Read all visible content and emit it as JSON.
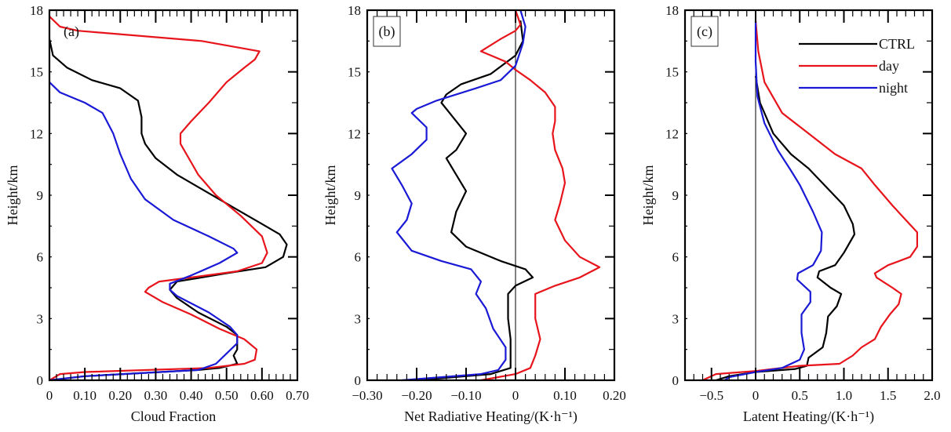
{
  "chart_data": [
    {
      "type": "line",
      "panel_label": "(a)",
      "xlabel": "Cloud Fraction",
      "ylabel": "Height/km",
      "xlim": [
        0,
        0.7
      ],
      "ylim": [
        0,
        18
      ],
      "xticks": [
        0,
        0.1,
        0.2,
        0.3,
        0.4,
        0.5,
        0.6,
        0.7
      ],
      "xtick_labels": [
        "0",
        "0.10",
        "0.20",
        "0.30",
        "0.40",
        "0.50",
        "0.60",
        "0.70"
      ],
      "yticks": [
        0,
        3,
        6,
        9,
        12,
        15,
        18
      ],
      "ytick_labels": [
        "0",
        "3",
        "6",
        "9",
        "12",
        "15",
        "18"
      ],
      "zero_line": false,
      "panel_label_boxed": false,
      "legend": false,
      "series": [
        {
          "name": "CTRL",
          "color": "#000000",
          "x": [
            0,
            0.01,
            0.05,
            0.12,
            0.2,
            0.25,
            0.26,
            0.26,
            0.27,
            0.3,
            0.36,
            0.44,
            0.53,
            0.6,
            0.65,
            0.67,
            0.66,
            0.61,
            0.5,
            0.36,
            0.34,
            0.36,
            0.42,
            0.5,
            0.53,
            0.53,
            0.52,
            0.53,
            0.48,
            0.42,
            0.1,
            0
          ],
          "y": [
            16.6,
            15.8,
            15.2,
            14.6,
            14.2,
            13.6,
            12.8,
            12.0,
            11.5,
            10.8,
            10.0,
            9.2,
            8.3,
            7.6,
            7.1,
            6.6,
            6.0,
            5.5,
            5.2,
            4.8,
            4.4,
            4.0,
            3.3,
            2.6,
            2.2,
            1.5,
            1.2,
            0.8,
            0.6,
            0.5,
            0.2,
            0
          ]
        },
        {
          "name": "day",
          "color": "#e8141b",
          "x": [
            0,
            0.03,
            0.08,
            0.43,
            0.593,
            0.58,
            0.55,
            0.5,
            0.45,
            0.4,
            0.37,
            0.37,
            0.4,
            0.42,
            0.47,
            0.54,
            0.6,
            0.615,
            0.6,
            0.53,
            0.4,
            0.31,
            0.28,
            0.27,
            0.32,
            0.4,
            0.48,
            0.55,
            0.585,
            0.58,
            0.55,
            0.45,
            0.1,
            0.03,
            0.01,
            0
          ],
          "y": [
            17.7,
            17.2,
            17.0,
            16.5,
            16.0,
            15.6,
            15.2,
            14.5,
            13.5,
            12.6,
            12.0,
            11.5,
            10.6,
            10.0,
            9.0,
            8.0,
            7.0,
            6.2,
            5.7,
            5.3,
            5.0,
            4.8,
            4.5,
            4.3,
            3.8,
            3.2,
            2.5,
            2.0,
            1.5,
            1.0,
            0.8,
            0.6,
            0.4,
            0.3,
            0.1,
            0
          ]
        },
        {
          "name": "night",
          "color": "#1a1ad6",
          "x": [
            0,
            0.03,
            0.1,
            0.15,
            0.18,
            0.2,
            0.23,
            0.27,
            0.35,
            0.45,
            0.52,
            0.53,
            0.48,
            0.4,
            0.34,
            0.34,
            0.36,
            0.45,
            0.51,
            0.53,
            0.53,
            0.5,
            0.47,
            0.42,
            0.1,
            0
          ],
          "y": [
            14.5,
            14.0,
            13.5,
            13.0,
            12.0,
            11.0,
            9.8,
            8.8,
            7.8,
            7.0,
            6.4,
            6.2,
            5.7,
            5.1,
            4.7,
            4.4,
            4.1,
            3.3,
            2.6,
            2.2,
            1.8,
            1.3,
            0.8,
            0.5,
            0.2,
            0
          ]
        }
      ]
    },
    {
      "type": "line",
      "panel_label": "(b)",
      "xlabel": "Net Radiative Heating/(K·h⁻¹)",
      "ylabel": "Height/km",
      "xlim": [
        -0.3,
        0.2
      ],
      "ylim": [
        0,
        18
      ],
      "xticks": [
        -0.3,
        -0.2,
        -0.1,
        0,
        0.1,
        0.2
      ],
      "xtick_labels": [
        "−0.30",
        "−0.20",
        "−0.10",
        "0",
        "0.10",
        "0.20"
      ],
      "yticks": [
        0,
        3,
        6,
        9,
        12,
        15,
        18
      ],
      "ytick_labels": [
        "0",
        "3",
        "6",
        "9",
        "12",
        "15",
        "18"
      ],
      "zero_line": true,
      "panel_label_boxed": true,
      "legend": false,
      "series": [
        {
          "name": "CTRL",
          "color": "#000000",
          "x": [
            0.01,
            0.015,
            0.0,
            -0.05,
            -0.11,
            -0.14,
            -0.15,
            -0.12,
            -0.1,
            -0.12,
            -0.14,
            -0.12,
            -0.1,
            -0.12,
            -0.13,
            -0.1,
            -0.03,
            0.02,
            0.035,
            0.0,
            -0.015,
            -0.015,
            -0.01,
            -0.01,
            -0.01,
            -0.05,
            -0.2
          ],
          "y": [
            17.5,
            16.5,
            15.8,
            14.9,
            14.4,
            13.9,
            13.5,
            12.6,
            12.0,
            11.2,
            10.8,
            10.0,
            9.2,
            8.2,
            7.2,
            6.5,
            5.8,
            5.4,
            5.0,
            4.6,
            4.2,
            3.0,
            2.0,
            1.0,
            0.6,
            0.3,
            0
          ]
        },
        {
          "name": "day",
          "color": "#e8141b",
          "x": [
            0.0,
            0.01,
            0.0,
            -0.03,
            -0.07,
            -0.02,
            0.0,
            0.03,
            0.06,
            0.08,
            0.08,
            0.075,
            0.08,
            0.095,
            0.1,
            0.09,
            0.08,
            0.1,
            0.13,
            0.17,
            0.13,
            0.08,
            0.04,
            0.04,
            0.05,
            0.04,
            0.03,
            0.0,
            -0.07
          ],
          "y": [
            18,
            17.3,
            17.0,
            16.6,
            16.0,
            15.5,
            15.1,
            14.6,
            14.0,
            13.3,
            12.6,
            12.0,
            11.2,
            10.3,
            9.6,
            8.6,
            7.8,
            6.8,
            6.0,
            5.5,
            5.0,
            4.6,
            4.2,
            3.0,
            2.0,
            1.2,
            0.6,
            0.3,
            0
          ]
        },
        {
          "name": "night",
          "color": "#1a1ad6",
          "x": [
            0.01,
            0.02,
            0.015,
            0.0,
            -0.03,
            -0.08,
            -0.16,
            -0.2,
            -0.21,
            -0.18,
            -0.18,
            -0.21,
            -0.25,
            -0.23,
            -0.21,
            -0.22,
            -0.24,
            -0.21,
            -0.15,
            -0.09,
            -0.07,
            -0.08,
            -0.06,
            -0.045,
            -0.02,
            -0.02,
            -0.035,
            -0.07,
            -0.23
          ],
          "y": [
            18,
            17.2,
            16.4,
            15.3,
            14.6,
            14.2,
            13.6,
            13.2,
            13.0,
            12.3,
            11.7,
            11.0,
            10.3,
            9.5,
            8.6,
            7.8,
            7.2,
            6.3,
            5.8,
            5.4,
            4.8,
            4.2,
            3.5,
            2.5,
            1.6,
            1.0,
            0.5,
            0.3,
            0
          ]
        }
      ]
    },
    {
      "type": "line",
      "panel_label": "(c)",
      "xlabel": "Latent Heating/(K·h⁻¹)",
      "ylabel": "Height/km",
      "xlim": [
        -0.8,
        2.0
      ],
      "ylim": [
        0,
        18
      ],
      "xticks": [
        -0.5,
        0,
        0.5,
        1.0,
        1.5,
        2.0
      ],
      "xtick_labels": [
        "−0.5",
        "0",
        "0.5",
        "1.0",
        "1.5",
        "2.0"
      ],
      "yticks": [
        0,
        3,
        6,
        9,
        12,
        15,
        18
      ],
      "ytick_labels": [
        "0",
        "3",
        "6",
        "9",
        "12",
        "15",
        "18"
      ],
      "zero_line": true,
      "panel_label_boxed": true,
      "legend": true,
      "legend_position": "top-right",
      "legend_entries": [
        "CTRL",
        "day",
        "night"
      ],
      "series": [
        {
          "name": "CTRL",
          "color": "#000000",
          "x": [
            0,
            0.05,
            0.2,
            0.4,
            0.6,
            0.8,
            1.0,
            1.1,
            1.12,
            1.0,
            0.9,
            0.72,
            0.7,
            0.85,
            0.97,
            0.92,
            0.82,
            0.8,
            0.76,
            0.6,
            0.58,
            0.45,
            0.0,
            -0.3,
            -0.45
          ],
          "y": [
            14.8,
            13.5,
            12.0,
            11.0,
            10.3,
            9.4,
            8.5,
            7.6,
            7.1,
            6.2,
            5.6,
            5.3,
            5.0,
            4.5,
            4.2,
            3.6,
            3.1,
            2.3,
            1.6,
            1.1,
            0.7,
            0.55,
            0.4,
            0.2,
            0
          ]
        },
        {
          "name": "day",
          "color": "#e8141b",
          "x": [
            0,
            0.03,
            0.1,
            0.3,
            0.6,
            0.9,
            1.2,
            1.35,
            1.55,
            1.7,
            1.83,
            1.83,
            1.75,
            1.5,
            1.35,
            1.37,
            1.55,
            1.65,
            1.62,
            1.52,
            1.42,
            1.35,
            1.2,
            1.1,
            0.95,
            0.5,
            0.0,
            -0.45,
            -0.6
          ],
          "y": [
            17.5,
            16.0,
            14.5,
            13.0,
            12.0,
            11.0,
            10.3,
            9.5,
            8.5,
            7.8,
            7.2,
            6.5,
            6.0,
            5.6,
            5.2,
            5.0,
            4.5,
            4.2,
            3.7,
            3.2,
            2.6,
            2.0,
            1.6,
            1.2,
            0.8,
            0.7,
            0.45,
            0.3,
            0
          ]
        },
        {
          "name": "night",
          "color": "#1a1ad6",
          "x": [
            0,
            0.0,
            0.02,
            0.1,
            0.25,
            0.4,
            0.5,
            0.65,
            0.75,
            0.74,
            0.65,
            0.48,
            0.47,
            0.62,
            0.62,
            0.52,
            0.52,
            0.55,
            0.5,
            0.3,
            0.0,
            -0.3,
            -0.35
          ],
          "y": [
            17.5,
            15.5,
            13.8,
            12.5,
            11.2,
            10.2,
            9.5,
            8.2,
            7.2,
            6.3,
            5.6,
            5.2,
            4.9,
            4.3,
            3.8,
            3.2,
            2.3,
            1.5,
            1.0,
            0.6,
            0.4,
            0.15,
            0
          ]
        }
      ]
    }
  ]
}
